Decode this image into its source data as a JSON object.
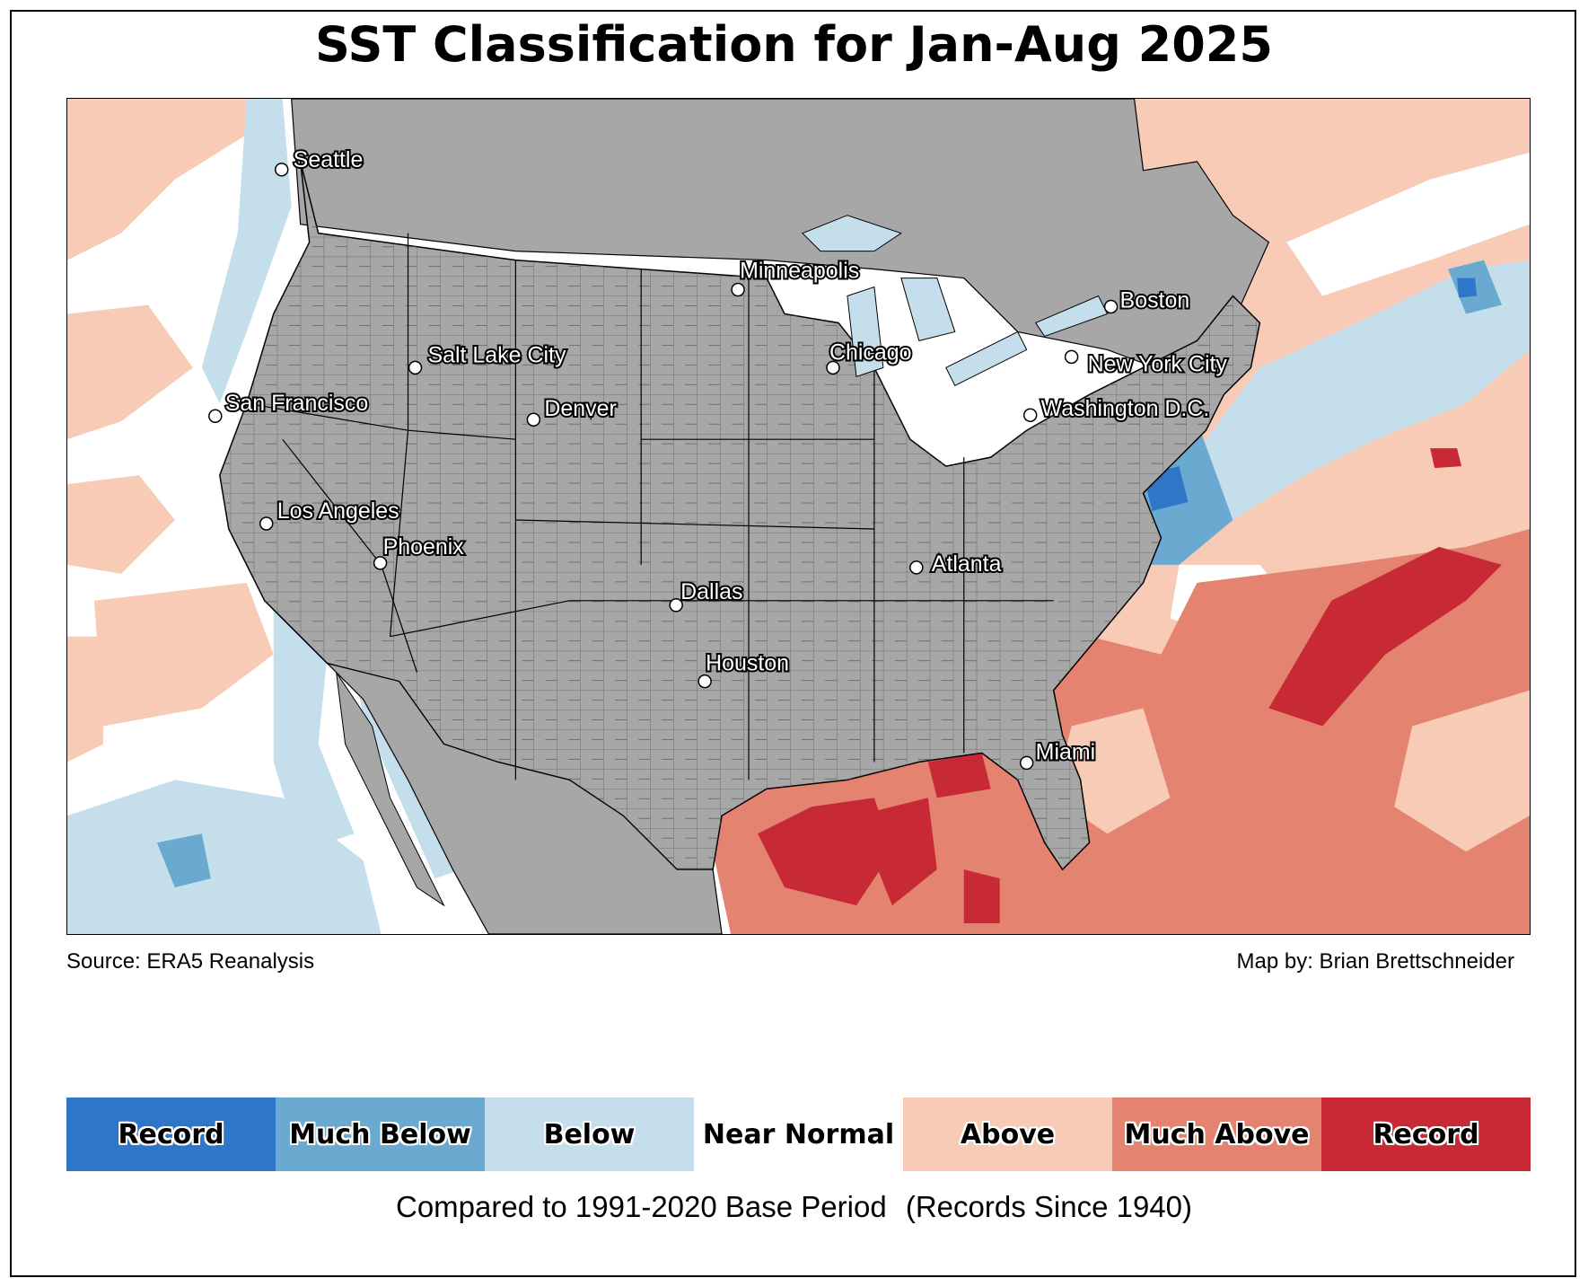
{
  "title": "SST Classification for Jan-Aug 2025",
  "source": "Source: ERA5 Reanalysis",
  "credit": "Map by: Brian Brettschneider",
  "legend": [
    {
      "label": "Record",
      "color": "#2e77c8"
    },
    {
      "label": "Much Below",
      "color": "#6aa9d0"
    },
    {
      "label": "Below",
      "color": "#c5deec"
    },
    {
      "label": "Near Normal",
      "color": "#ffffff"
    },
    {
      "label": "Above",
      "color": "#f7cbb5"
    },
    {
      "label": "Much Above",
      "color": "#e48370"
    },
    {
      "label": "Record",
      "color": "#c72a35"
    }
  ],
  "base_period": "Compared to 1991-2020 Base Period",
  "records_since": "(Records Since 1940)",
  "land_color": "#a7a7a7",
  "cities": [
    {
      "name": "Seattle"
    },
    {
      "name": "Minneapolis"
    },
    {
      "name": "Boston"
    },
    {
      "name": "Salt Lake City"
    },
    {
      "name": "Chicago"
    },
    {
      "name": "New York City"
    },
    {
      "name": "San Francisco"
    },
    {
      "name": "Denver"
    },
    {
      "name": "Washington D.C."
    },
    {
      "name": "Los Angeles"
    },
    {
      "name": "Phoenix"
    },
    {
      "name": "Atlanta"
    },
    {
      "name": "Dallas"
    },
    {
      "name": "Houston"
    },
    {
      "name": "Miami"
    }
  ]
}
